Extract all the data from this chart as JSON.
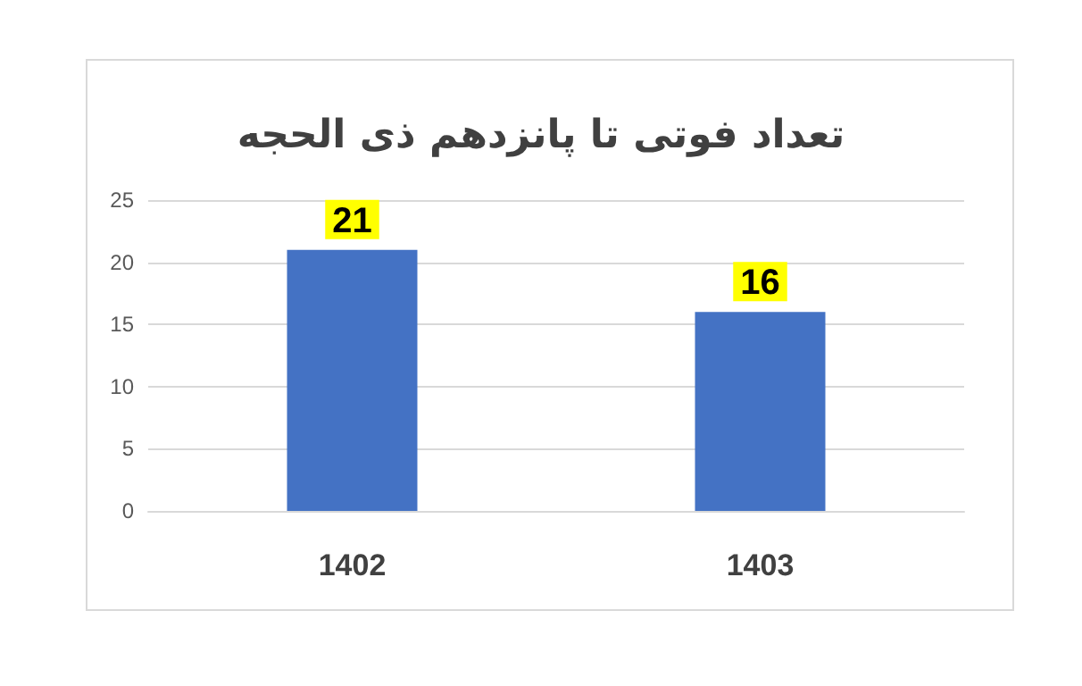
{
  "chart_data": {
    "type": "bar",
    "title": "تعداد فوتی تا پانزدهم ذی الحجه",
    "categories": [
      "1402",
      "1403"
    ],
    "values": [
      21,
      16
    ],
    "color": "#4472c4",
    "ylim": [
      0,
      25
    ],
    "yticks": [
      0,
      5,
      10,
      15,
      20,
      25
    ],
    "grid": "y",
    "data_labels": true
  }
}
